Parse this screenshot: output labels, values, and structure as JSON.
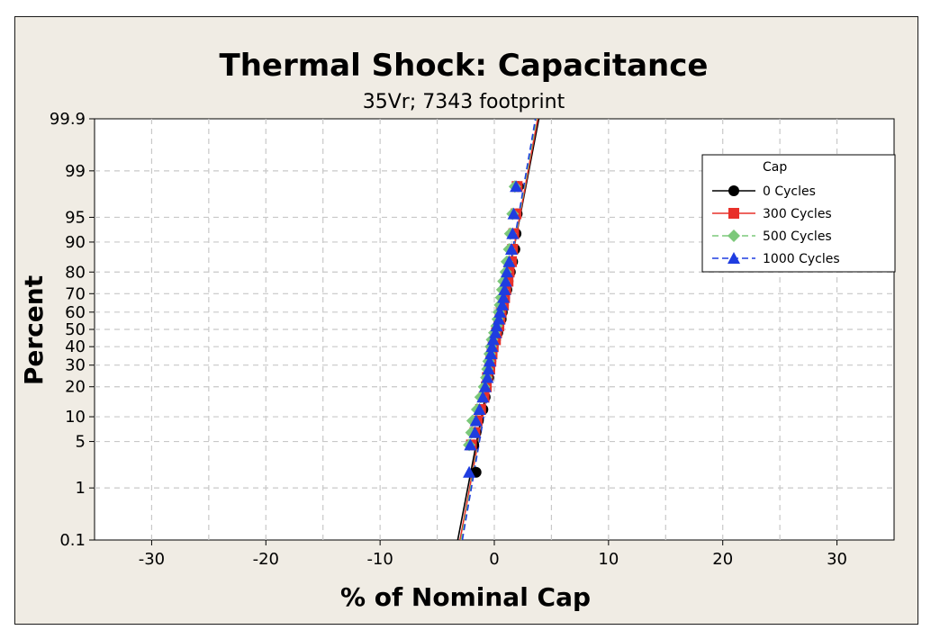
{
  "chart_data": {
    "type": "scatter",
    "title": "Thermal Shock: Capacitance",
    "subtitle": "35Vr; 7343 footprint",
    "xlabel": "% of Nominal Cap",
    "ylabel": "Percent",
    "xlim": [
      -35,
      35
    ],
    "x_ticks": [
      -30,
      -20,
      -10,
      0,
      10,
      20,
      30
    ],
    "x_tick_labels": [
      "-30",
      "-20",
      "-10",
      "0",
      "10",
      "20",
      "30"
    ],
    "y_scale": "probability",
    "ylim": [
      0.1,
      99.9
    ],
    "y_ticks": [
      0.1,
      1,
      5,
      10,
      20,
      30,
      40,
      50,
      60,
      70,
      80,
      90,
      95,
      99,
      99.9
    ],
    "y_tick_labels": [
      "0.1",
      "1",
      "5",
      "10",
      "20",
      "30",
      "40",
      "50",
      "60",
      "70",
      "80",
      "90",
      "95",
      "99",
      "99.9"
    ],
    "grid": true,
    "legend": {
      "title": "Cap",
      "placement": "top-right",
      "entries": [
        "0 Cycles",
        "300 Cycles",
        "500 Cycles",
        "1000 Cycles"
      ]
    },
    "series": [
      {
        "name": "0 Cycles",
        "color": "#000000",
        "marker": "circle",
        "line": "solid",
        "fit_line": [
          [
            -3.2,
            0.1
          ],
          [
            3.9,
            99.9
          ]
        ],
        "points": [
          [
            -1.6,
            1.8
          ],
          [
            -1.8,
            4.5
          ],
          [
            -1.6,
            6.5
          ],
          [
            -1.4,
            9
          ],
          [
            -1.0,
            12
          ],
          [
            -0.8,
            16
          ],
          [
            -0.7,
            20
          ],
          [
            -0.5,
            24
          ],
          [
            -0.4,
            28
          ],
          [
            -0.3,
            32
          ],
          [
            -0.2,
            36
          ],
          [
            -0.1,
            40
          ],
          [
            0.1,
            44
          ],
          [
            0.3,
            48
          ],
          [
            0.4,
            52
          ],
          [
            0.6,
            56
          ],
          [
            0.7,
            60
          ],
          [
            0.8,
            64
          ],
          [
            0.9,
            68
          ],
          [
            1.1,
            72
          ],
          [
            1.2,
            76
          ],
          [
            1.4,
            80
          ],
          [
            1.6,
            84
          ],
          [
            1.8,
            88
          ],
          [
            1.9,
            92
          ],
          [
            2.0,
            95.5
          ],
          [
            2.1,
            98.2
          ]
        ]
      },
      {
        "name": "300 Cycles",
        "color": "#e8302a",
        "marker": "square",
        "line": "solid",
        "fit_line": [
          [
            -3.0,
            0.1
          ],
          [
            3.8,
            99.9
          ]
        ],
        "points": [
          [
            -2.0,
            4.5
          ],
          [
            -1.7,
            6.5
          ],
          [
            -1.5,
            9
          ],
          [
            -1.2,
            12
          ],
          [
            -0.9,
            16
          ],
          [
            -0.7,
            20
          ],
          [
            -0.6,
            24
          ],
          [
            -0.4,
            28
          ],
          [
            -0.3,
            32
          ],
          [
            -0.2,
            36
          ],
          [
            -0.1,
            40
          ],
          [
            0.1,
            44
          ],
          [
            0.2,
            48
          ],
          [
            0.4,
            52
          ],
          [
            0.5,
            56
          ],
          [
            0.6,
            60
          ],
          [
            0.8,
            64
          ],
          [
            0.9,
            68
          ],
          [
            1.0,
            72
          ],
          [
            1.2,
            76
          ],
          [
            1.3,
            80
          ],
          [
            1.5,
            84
          ],
          [
            1.6,
            88
          ],
          [
            1.7,
            92
          ],
          [
            1.9,
            95.5
          ],
          [
            2.0,
            98.2
          ]
        ]
      },
      {
        "name": "500 Cycles",
        "color": "#7cc87a",
        "marker": "diamond",
        "line": "dashed",
        "fit_line": [
          [
            -2.9,
            0.1
          ],
          [
            3.7,
            99.9
          ]
        ],
        "points": [
          [
            -2.2,
            4.5
          ],
          [
            -2.0,
            6.5
          ],
          [
            -1.9,
            9
          ],
          [
            -1.5,
            12
          ],
          [
            -1.2,
            16
          ],
          [
            -0.9,
            20
          ],
          [
            -0.7,
            24
          ],
          [
            -0.6,
            28
          ],
          [
            -0.5,
            32
          ],
          [
            -0.4,
            36
          ],
          [
            -0.3,
            40
          ],
          [
            -0.2,
            44
          ],
          [
            0.0,
            48
          ],
          [
            0.2,
            52
          ],
          [
            0.3,
            56
          ],
          [
            0.4,
            60
          ],
          [
            0.5,
            64
          ],
          [
            0.6,
            68
          ],
          [
            0.7,
            72
          ],
          [
            0.8,
            76
          ],
          [
            1.0,
            80
          ],
          [
            1.1,
            84
          ],
          [
            1.3,
            88
          ],
          [
            1.4,
            92
          ],
          [
            1.6,
            95.5
          ],
          [
            1.8,
            98.2
          ]
        ]
      },
      {
        "name": "1000 Cycles",
        "color": "#1f3de0",
        "marker": "triangle",
        "line": "dashed",
        "fit_line": [
          [
            -2.8,
            0.1
          ],
          [
            3.6,
            99.9
          ]
        ],
        "points": [
          [
            -2.2,
            1.8
          ],
          [
            -2.1,
            4.5
          ],
          [
            -1.7,
            6.5
          ],
          [
            -1.6,
            9
          ],
          [
            -1.3,
            12
          ],
          [
            -1.0,
            16
          ],
          [
            -0.8,
            20
          ],
          [
            -0.6,
            24
          ],
          [
            -0.5,
            28
          ],
          [
            -0.4,
            32
          ],
          [
            -0.3,
            36
          ],
          [
            -0.2,
            40
          ],
          [
            -0.1,
            44
          ],
          [
            0.1,
            48
          ],
          [
            0.2,
            52
          ],
          [
            0.4,
            56
          ],
          [
            0.5,
            60
          ],
          [
            0.7,
            64
          ],
          [
            0.8,
            68
          ],
          [
            0.9,
            72
          ],
          [
            1.0,
            76
          ],
          [
            1.1,
            80
          ],
          [
            1.3,
            84
          ],
          [
            1.5,
            88
          ],
          [
            1.6,
            92
          ],
          [
            1.7,
            95.5
          ],
          [
            1.9,
            98.2
          ]
        ]
      }
    ]
  }
}
